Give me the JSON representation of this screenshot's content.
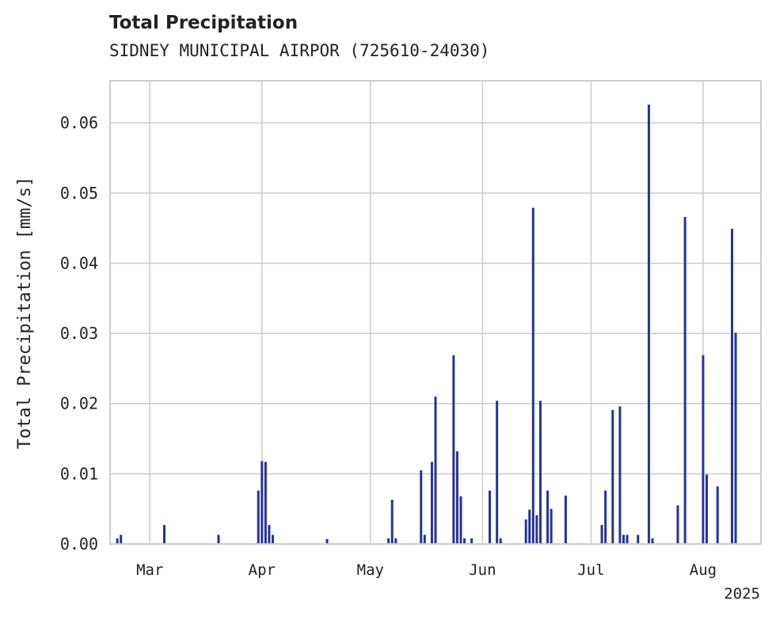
{
  "chart_data": {
    "type": "bar",
    "title": "Total Precipitation",
    "subtitle": "SIDNEY MUNICIPAL AIRPOR (725610-24030)",
    "ylabel": "Total Precipitation [mm/s]",
    "xlabel": "",
    "ylim": [
      0,
      0.066
    ],
    "y_ticks": [
      "0.00",
      "0.01",
      "0.02",
      "0.03",
      "0.04",
      "0.05",
      "0.06"
    ],
    "x_ticks": [
      "Mar",
      "Apr",
      "May",
      "Jun",
      "Jul",
      "Aug"
    ],
    "x_tick_dates": [
      "2025-03-01",
      "2025-04-01",
      "2025-05-01",
      "2025-06-01",
      "2025-07-01",
      "2025-08-01"
    ],
    "year_label": "2025",
    "xlim": [
      "2025-02-18",
      "2025-08-17"
    ],
    "grid": true,
    "bar_color": "#253494",
    "x": [
      "2025-02-20",
      "2025-02-21",
      "2025-03-05",
      "2025-03-20",
      "2025-03-31",
      "2025-04-01",
      "2025-04-02",
      "2025-04-03",
      "2025-04-04",
      "2025-04-19",
      "2025-05-06",
      "2025-05-07",
      "2025-05-08",
      "2025-05-15",
      "2025-05-16",
      "2025-05-18",
      "2025-05-19",
      "2025-05-24",
      "2025-05-25",
      "2025-05-26",
      "2025-05-27",
      "2025-05-29",
      "2025-06-03",
      "2025-06-05",
      "2025-06-06",
      "2025-06-13",
      "2025-06-14",
      "2025-06-15",
      "2025-06-16",
      "2025-06-17",
      "2025-06-19",
      "2025-06-20",
      "2025-06-24",
      "2025-07-04",
      "2025-07-05",
      "2025-07-07",
      "2025-07-09",
      "2025-07-10",
      "2025-07-11",
      "2025-07-14",
      "2025-07-17",
      "2025-07-18",
      "2025-07-25",
      "2025-07-27",
      "2025-08-01",
      "2025-08-02",
      "2025-08-05",
      "2025-08-09",
      "2025-08-10"
    ],
    "values": [
      0.0008,
      0.0013,
      0.0027,
      0.0013,
      0.0076,
      0.0118,
      0.0117,
      0.0027,
      0.0013,
      0.0007,
      0.0008,
      0.0063,
      0.0008,
      0.0105,
      0.0013,
      0.0117,
      0.021,
      0.0269,
      0.0132,
      0.0068,
      0.0008,
      0.0008,
      0.0076,
      0.0204,
      0.0008,
      0.0035,
      0.0049,
      0.0479,
      0.0041,
      0.0204,
      0.0076,
      0.005,
      0.0069,
      0.0027,
      0.0076,
      0.0191,
      0.0196,
      0.0013,
      0.0013,
      0.0013,
      0.0626,
      0.0008,
      0.0055,
      0.0466,
      0.0269,
      0.0099,
      0.0082,
      0.0449,
      0.0301
    ]
  }
}
